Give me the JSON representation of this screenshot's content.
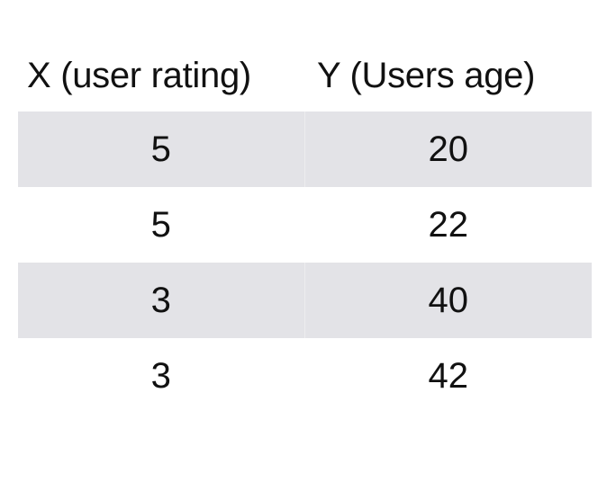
{
  "chart_data": {
    "type": "table",
    "columns": [
      "X (user rating)",
      "Y (Users age)"
    ],
    "rows": [
      [
        "5",
        "20"
      ],
      [
        "5",
        "22"
      ],
      [
        "3",
        "40"
      ],
      [
        "3",
        "42"
      ]
    ],
    "row_shading": [
      "#e3e3e7",
      "#ffffff",
      "#e3e3e7",
      "#ffffff"
    ]
  }
}
